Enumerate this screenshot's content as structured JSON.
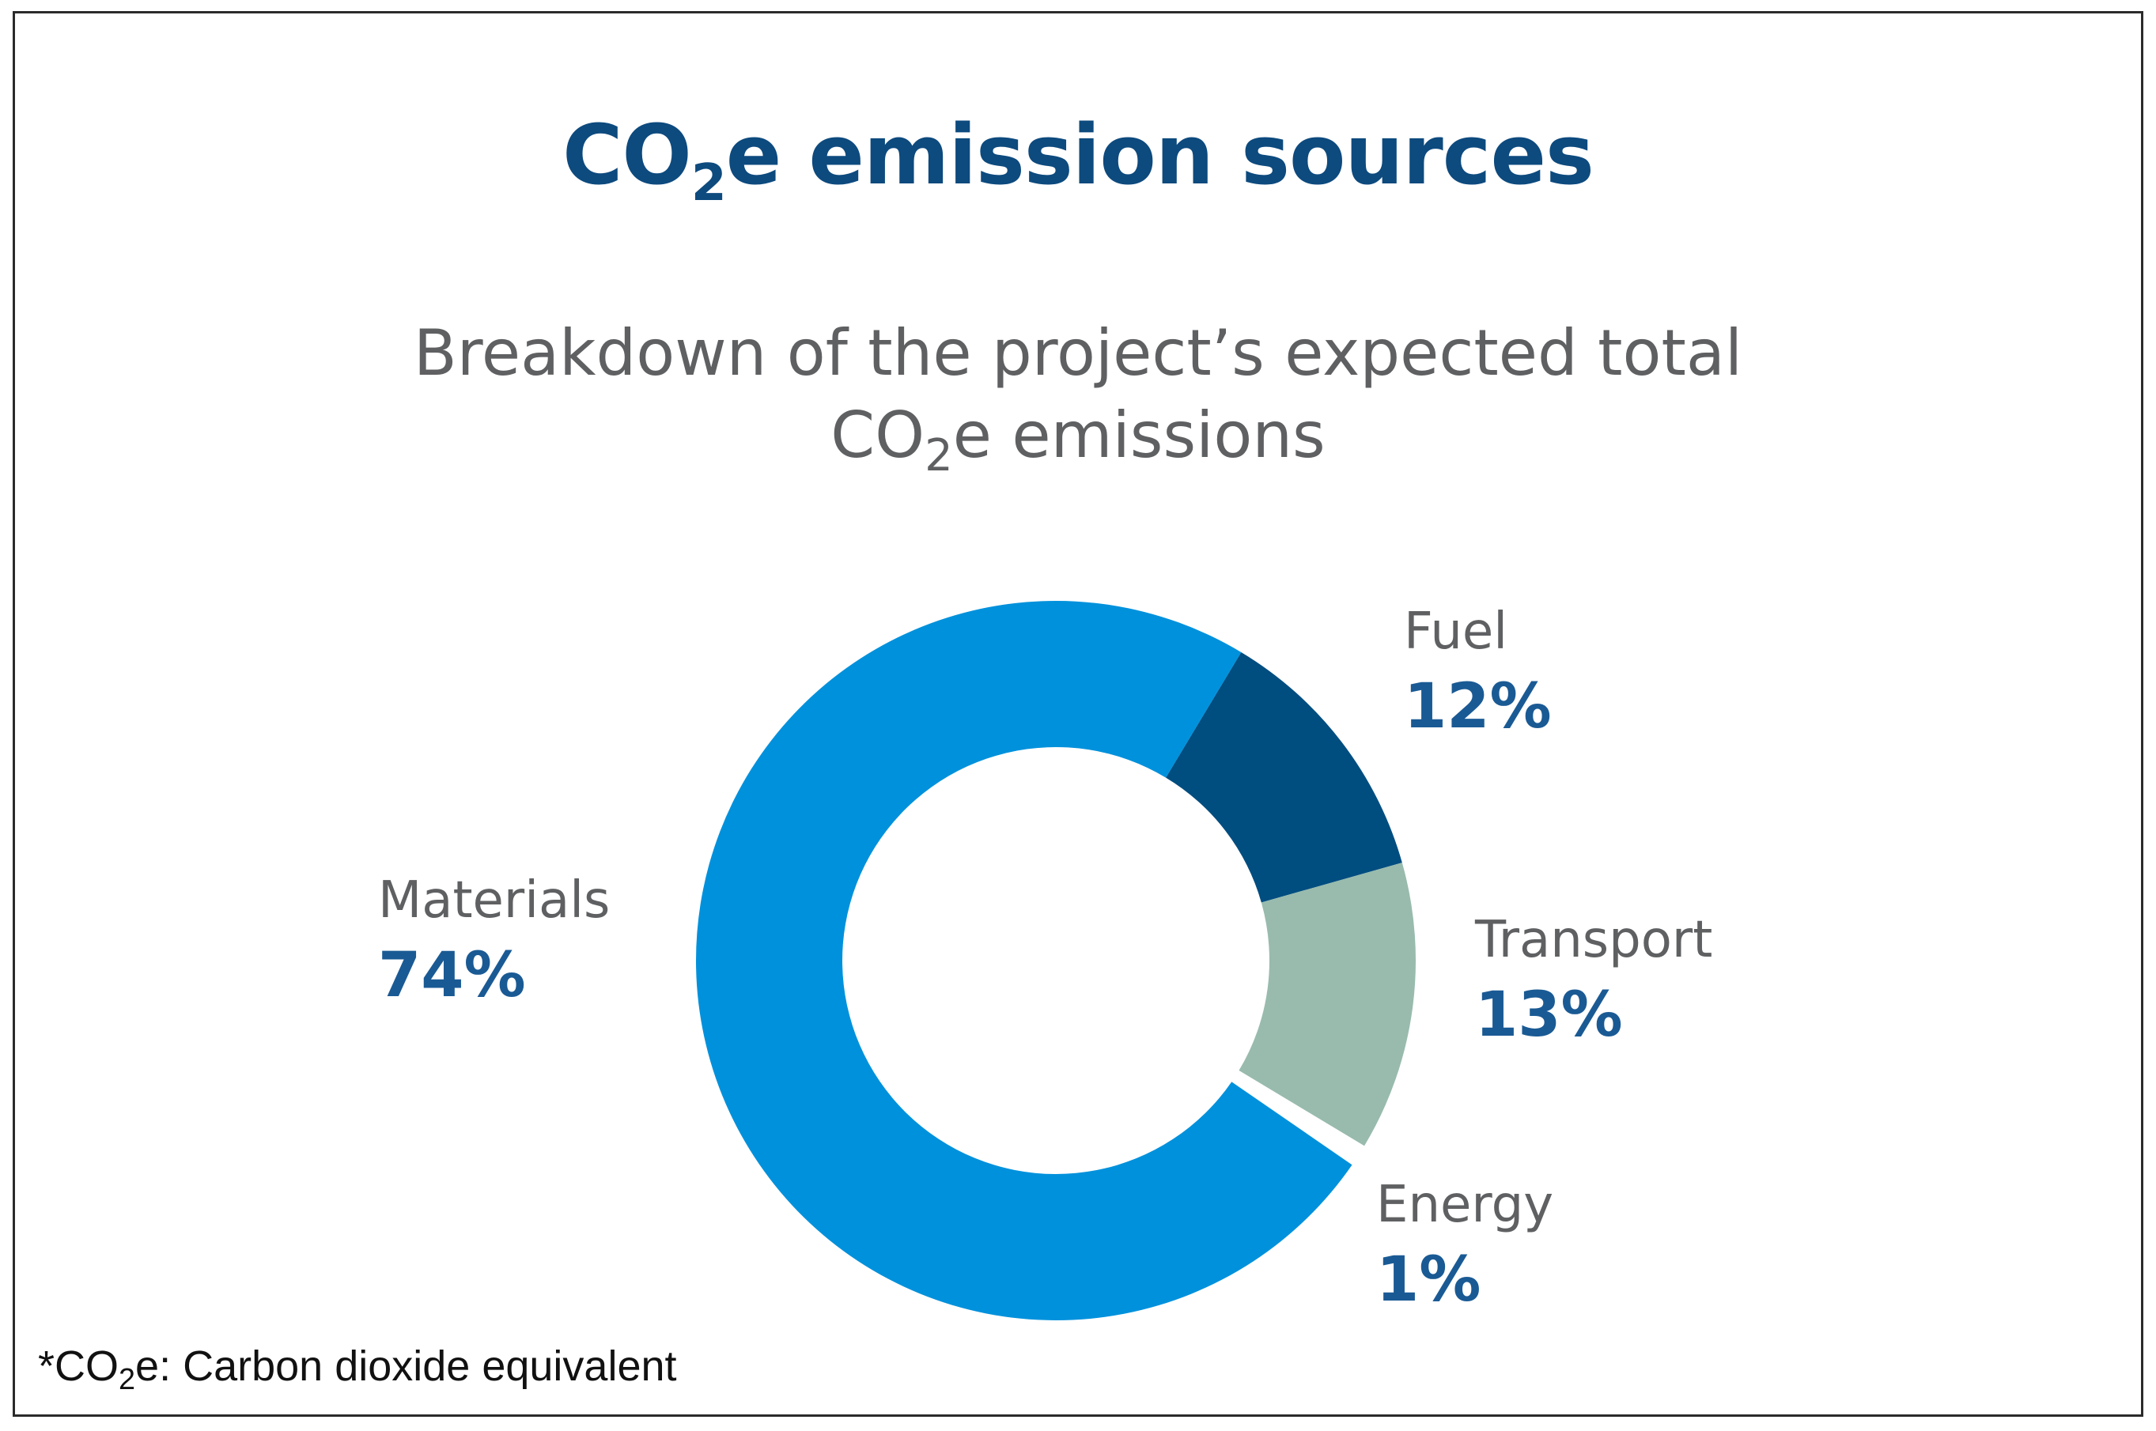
{
  "title": {
    "prefix": "CO",
    "sub": "2",
    "suffix": "e emission sources"
  },
  "subtitle": {
    "line1": "Breakdown of the project’s expected total",
    "line2_prefix": "CO",
    "line2_sub": "2",
    "line2_suffix": "e emissions"
  },
  "footnote": {
    "prefix": "*CO",
    "sub": "2",
    "suffix": "e: Carbon dioxide equivalent"
  },
  "chart_data": {
    "type": "pie",
    "style": "donut",
    "title": "CO2e emission sources",
    "subtitle": "Breakdown of the project’s expected total CO2e emissions",
    "slices": [
      {
        "name": "Fuel",
        "value": 12,
        "label": "12%",
        "color": "#004d80"
      },
      {
        "name": "Transport",
        "value": 13,
        "label": "13%",
        "color": "#98bbad"
      },
      {
        "name": "Energy",
        "value": 1,
        "label": "1%",
        "color": "#ffffff"
      },
      {
        "name": "Materials",
        "value": 74,
        "label": "74%",
        "color": "#0091dc"
      }
    ]
  }
}
